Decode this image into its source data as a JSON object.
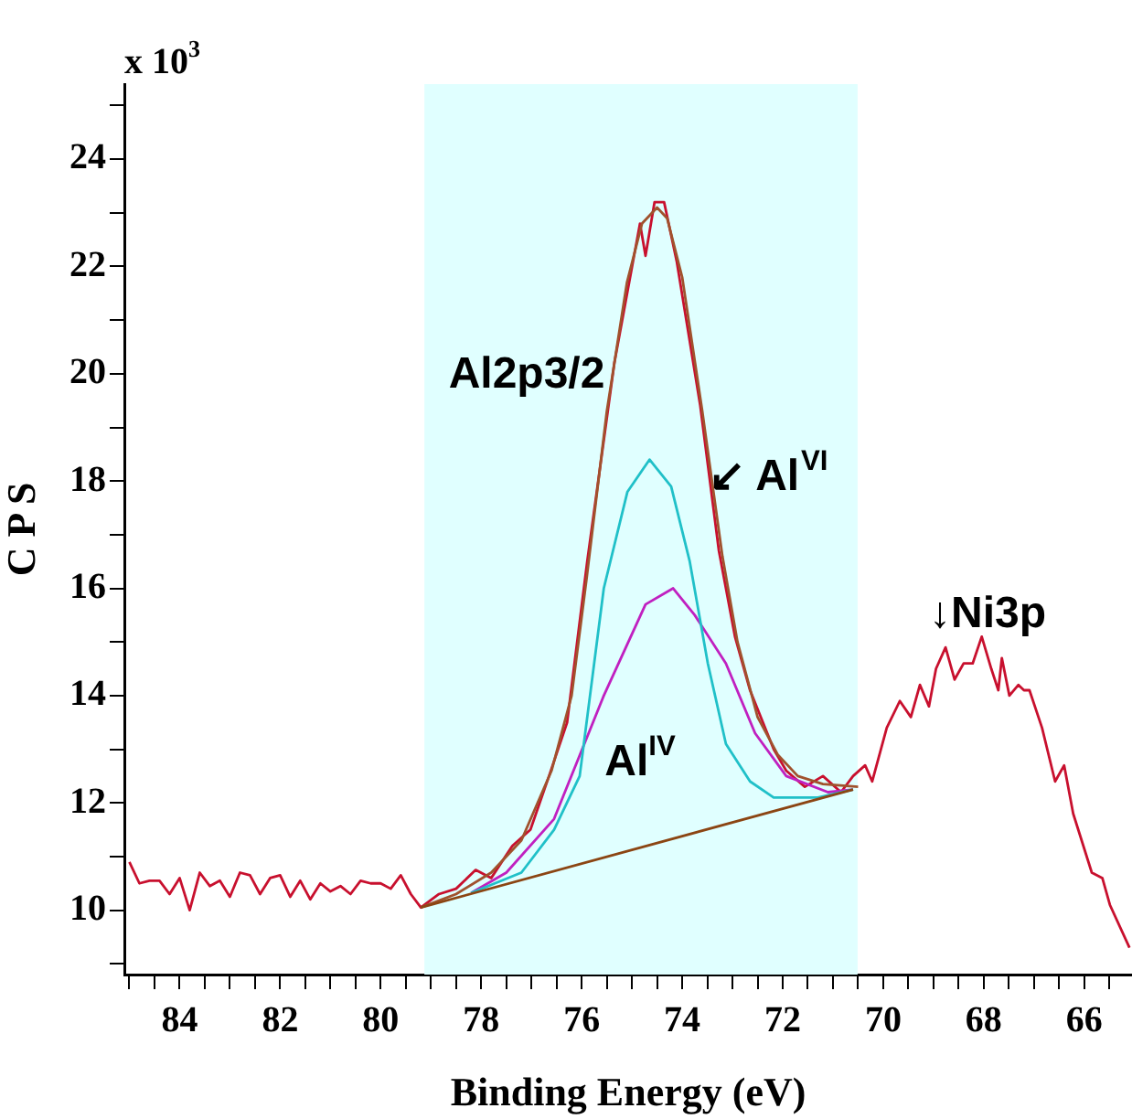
{
  "chart_data": {
    "type": "line",
    "xlabel": "Binding Energy (eV)",
    "ylabel": "C P S",
    "xlim": [
      85.1,
      65.05
    ],
    "ylim": [
      8.8,
      25.4
    ],
    "xticks": [
      {
        "value": 85,
        "label": null
      },
      {
        "value": 84.5,
        "label": null
      },
      84,
      {
        "value": 83.5,
        "label": null
      },
      {
        "value": 83,
        "label": null
      },
      {
        "value": 82.5,
        "label": null
      },
      82,
      {
        "value": 81.5,
        "label": null
      },
      {
        "value": 81,
        "label": null
      },
      {
        "value": 80.5,
        "label": null
      },
      80,
      {
        "value": 79.5,
        "label": null
      },
      {
        "value": 79,
        "label": null
      },
      {
        "value": 78.5,
        "label": null
      },
      78,
      {
        "value": 77.5,
        "label": null
      },
      {
        "value": 77,
        "label": null
      },
      {
        "value": 76.5,
        "label": null
      },
      76,
      {
        "value": 75.5,
        "label": null
      },
      {
        "value": 75,
        "label": null
      },
      {
        "value": 74.5,
        "label": null
      },
      74,
      {
        "value": 73.5,
        "label": null
      },
      {
        "value": 73,
        "label": null
      },
      {
        "value": 72.5,
        "label": null
      },
      72,
      {
        "value": 71.5,
        "label": null
      },
      {
        "value": 71,
        "label": null
      },
      {
        "value": 70.5,
        "label": null
      },
      70,
      {
        "value": 69.5,
        "label": null
      },
      {
        "value": 69,
        "label": null
      },
      {
        "value": 68.5,
        "label": null
      },
      68,
      {
        "value": 67.5,
        "label": null
      },
      {
        "value": 67,
        "label": null
      },
      {
        "value": 66.5,
        "label": null
      },
      66,
      {
        "value": 65.5,
        "label": null
      }
    ],
    "yticks": [
      {
        "value": 9,
        "label": null
      },
      10,
      {
        "value": 11,
        "label": null
      },
      12,
      {
        "value": 13,
        "label": null
      },
      14,
      {
        "value": 15,
        "label": null
      },
      16,
      {
        "value": 17,
        "label": null
      },
      18,
      {
        "value": 19,
        "label": null
      },
      20,
      {
        "value": 21,
        "label": null
      },
      22,
      {
        "value": 23,
        "label": null
      },
      24,
      {
        "value": 25,
        "label": null
      }
    ],
    "grid": false,
    "legend": false,
    "marker": "none",
    "line_style": "solid",
    "bands": [
      {
        "axis": "x",
        "from": 79.13,
        "to": 70.51,
        "color": "#e0ffff"
      }
    ],
    "series": [
      {
        "color": "#8b4513",
        "x": [
          79.2,
          70.6
        ],
        "values": [
          10.05,
          12.25
        ]
      },
      {
        "color": "#20c0c8",
        "x": [
          78.2,
          77.2,
          76.55,
          76.04,
          75.56,
          75.09,
          74.65,
          74.22,
          73.85,
          73.49,
          73.13,
          72.65,
          72.18,
          71.3,
          70.6
        ],
        "values": [
          10.32,
          10.7,
          11.5,
          12.5,
          16.0,
          17.8,
          18.4,
          17.9,
          16.5,
          14.6,
          13.1,
          12.4,
          12.1,
          12.1,
          12.25
        ]
      },
      {
        "color": "#c020c0",
        "x": [
          78.2,
          77.5,
          76.55,
          75.56,
          74.73,
          74.18,
          73.75,
          73.13,
          72.55,
          71.93,
          71.1,
          70.6
        ],
        "values": [
          10.32,
          10.7,
          11.7,
          14.0,
          15.7,
          16.0,
          15.5,
          14.6,
          13.3,
          12.5,
          12.2,
          12.25
        ]
      },
      {
        "color": "#a0522d",
        "x": [
          79.2,
          78.5,
          77.8,
          77.2,
          76.6,
          76.2,
          75.9,
          75.5,
          75.1,
          74.8,
          74.5,
          74.3,
          74.0,
          73.6,
          73.2,
          72.9,
          72.5,
          72.1,
          71.7,
          71.2,
          70.5
        ],
        "values": [
          10.05,
          10.3,
          10.7,
          11.3,
          12.6,
          14.0,
          16.2,
          19.3,
          21.7,
          22.8,
          23.1,
          22.9,
          21.8,
          19.3,
          16.6,
          15.0,
          13.6,
          12.9,
          12.5,
          12.35,
          12.3
        ]
      },
      {
        "color": "#c8102e",
        "x": [
          85.0,
          84.8,
          84.6,
          84.4,
          84.2,
          84.0,
          83.8,
          83.6,
          83.4,
          83.2,
          83.0,
          82.8,
          82.6,
          82.4,
          82.2,
          82.0,
          81.8,
          81.6,
          81.4,
          81.2,
          81.0,
          80.8,
          80.6,
          80.4,
          80.2,
          80.0,
          79.8,
          79.6,
          79.4,
          79.2,
          78.84,
          78.5,
          78.11,
          77.8,
          77.38,
          77.02,
          76.65,
          76.29,
          75.89,
          75.35,
          74.84,
          74.73,
          74.55,
          74.36,
          74.11,
          73.64,
          73.27,
          72.95,
          72.65,
          72.18,
          71.93,
          71.56,
          71.2,
          70.84,
          70.6,
          70.36,
          70.22,
          69.93,
          69.67,
          69.45,
          69.27,
          69.09,
          68.95,
          68.76,
          68.58,
          68.4,
          68.22,
          68.04,
          67.85,
          67.71,
          67.64,
          67.49,
          67.31,
          67.2,
          67.09,
          66.84,
          66.58,
          66.4,
          66.22,
          65.85,
          65.64,
          65.49,
          65.1
        ],
        "values": [
          10.9,
          10.5,
          10.55,
          10.55,
          10.3,
          10.6,
          10.0,
          10.7,
          10.45,
          10.55,
          10.25,
          10.7,
          10.65,
          10.3,
          10.6,
          10.65,
          10.25,
          10.55,
          10.2,
          10.5,
          10.35,
          10.45,
          10.3,
          10.55,
          10.5,
          10.5,
          10.4,
          10.65,
          10.3,
          10.05,
          10.3,
          10.4,
          10.75,
          10.6,
          11.2,
          11.5,
          12.5,
          13.5,
          16.5,
          20.2,
          22.8,
          22.2,
          23.2,
          23.2,
          22.1,
          19.4,
          16.7,
          15.1,
          14.1,
          13.0,
          12.6,
          12.3,
          12.5,
          12.2,
          12.5,
          12.7,
          12.4,
          13.4,
          13.9,
          13.6,
          14.2,
          13.8,
          14.5,
          14.9,
          14.3,
          14.6,
          14.6,
          15.1,
          14.5,
          14.1,
          14.7,
          14.0,
          14.2,
          14.1,
          14.1,
          13.4,
          12.4,
          12.7,
          11.8,
          10.7,
          10.6,
          10.1,
          9.3
        ]
      }
    ],
    "annotations": [
      "x 10$^{3}$",
      "Al2p3/2",
      "↙ Al$^{VI}$",
      "Al$^{IV}$",
      "↓Ni3p"
    ]
  }
}
